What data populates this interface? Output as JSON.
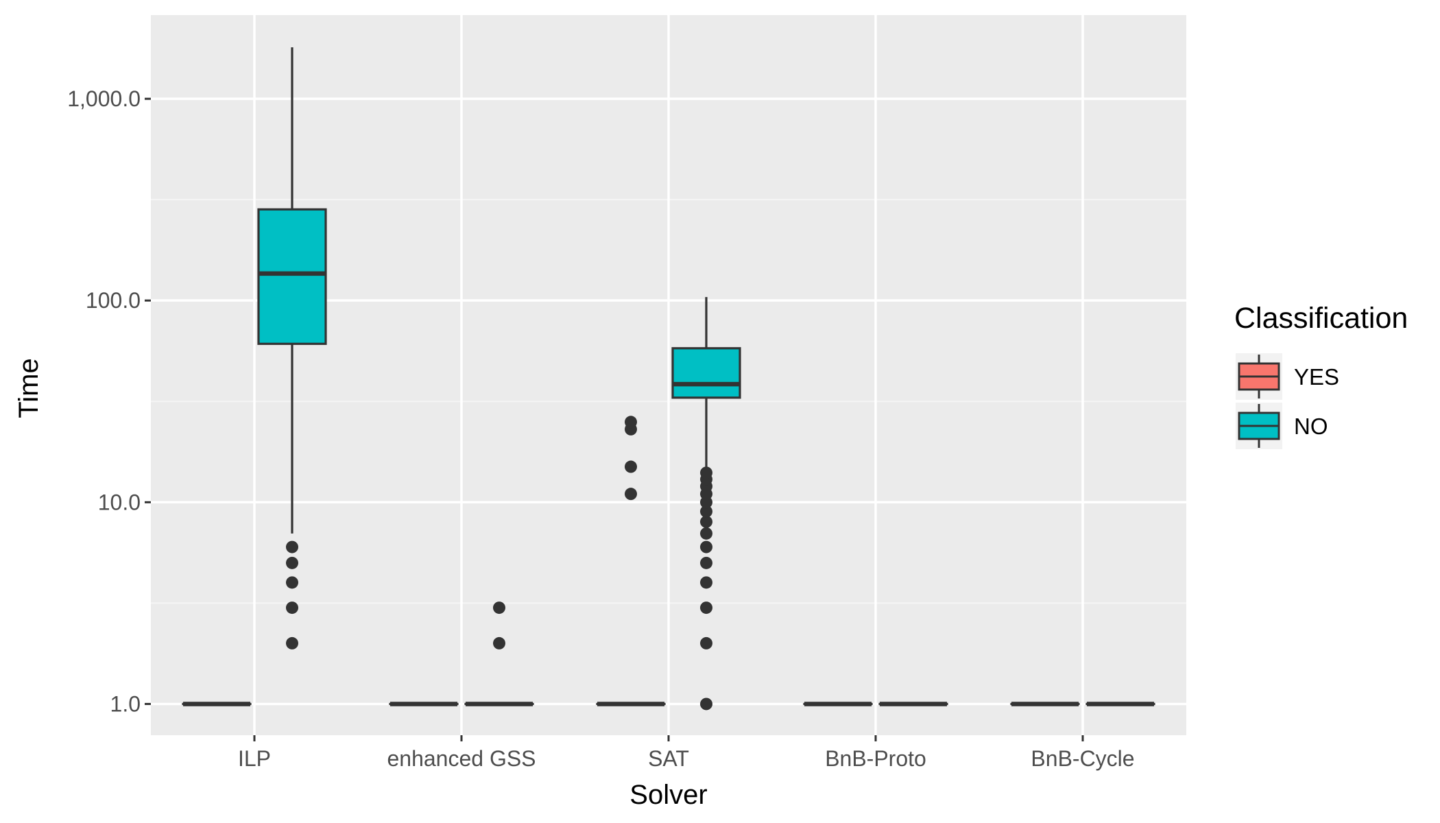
{
  "chart_data": {
    "type": "boxplot",
    "title": "",
    "xlabel": "Solver",
    "ylabel": "Time",
    "y_scale": "log10",
    "ylim": [
      0.7,
      2600
    ],
    "y_ticks": [
      1,
      10,
      100,
      1000
    ],
    "y_tick_labels": [
      "1.0",
      "10.0",
      "100.0",
      "1,000.0"
    ],
    "categories": [
      "ILP",
      "enhanced GSS",
      "SAT",
      "BnB-Proto",
      "BnB-Cycle"
    ],
    "legend": {
      "title": "Classification",
      "position": "right",
      "entries": [
        {
          "name": "YES",
          "color": "#F8766D"
        },
        {
          "name": "NO",
          "color": "#00BFC4"
        }
      ]
    },
    "series": [
      {
        "name": "YES",
        "color": "#F8766D",
        "boxes": [
          {
            "category": "ILP",
            "whisker_low": 1,
            "q1": 1,
            "median": 1,
            "q3": 1,
            "whisker_high": 1,
            "outliers": []
          },
          {
            "category": "enhanced GSS",
            "whisker_low": 1,
            "q1": 1,
            "median": 1,
            "q3": 1,
            "whisker_high": 1,
            "outliers": []
          },
          {
            "category": "SAT",
            "whisker_low": 1,
            "q1": 1,
            "median": 1,
            "q3": 1,
            "whisker_high": 1,
            "outliers": [
              11,
              15,
              23,
              25
            ]
          },
          {
            "category": "BnB-Proto",
            "whisker_low": 1,
            "q1": 1,
            "median": 1,
            "q3": 1,
            "whisker_high": 1,
            "outliers": []
          },
          {
            "category": "BnB-Cycle",
            "whisker_low": 1,
            "q1": 1,
            "median": 1,
            "q3": 1,
            "whisker_high": 1,
            "outliers": []
          }
        ]
      },
      {
        "name": "NO",
        "color": "#00BFC4",
        "boxes": [
          {
            "category": "ILP",
            "whisker_low": 7,
            "q1": 61,
            "median": 136,
            "q3": 283,
            "whisker_high": 1800,
            "outliers": [
              2,
              3,
              4,
              5,
              6
            ]
          },
          {
            "category": "enhanced GSS",
            "whisker_low": 1,
            "q1": 1,
            "median": 1,
            "q3": 1,
            "whisker_high": 1,
            "outliers": [
              2,
              3
            ]
          },
          {
            "category": "SAT",
            "whisker_low": 14,
            "q1": 33,
            "median": 38.5,
            "q3": 58,
            "whisker_high": 104,
            "outliers": [
              1,
              2,
              3,
              4,
              5,
              6,
              7,
              8,
              9,
              10,
              11,
              12,
              13,
              14
            ]
          },
          {
            "category": "BnB-Proto",
            "whisker_low": 1,
            "q1": 1,
            "median": 1,
            "q3": 1,
            "whisker_high": 1,
            "outliers": []
          },
          {
            "category": "BnB-Cycle",
            "whisker_low": 1,
            "q1": 1,
            "median": 1,
            "q3": 1,
            "whisker_high": 1,
            "outliers": []
          }
        ]
      }
    ]
  },
  "colors": {
    "panel_background": "#EBEBEB",
    "grid_major": "#FFFFFF",
    "grid_minor": "#F5F5F5",
    "box_outline": "#333333",
    "outlier": "#333333",
    "tick_text": "#4D4D4D"
  }
}
